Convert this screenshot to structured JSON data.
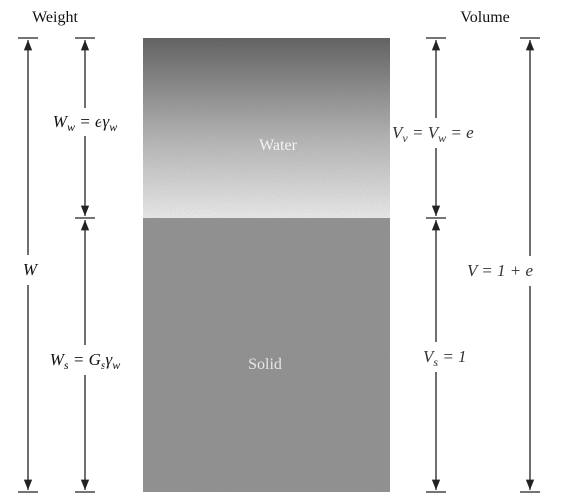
{
  "headers": {
    "weight": "Weight",
    "volume": "Volume"
  },
  "phases": {
    "water": "Water",
    "solid": "Solid"
  },
  "labels": {
    "water_weight": [
      {
        "text": "W"
      },
      {
        "text": "w",
        "sub": true
      },
      {
        "text": " = e"
      },
      {
        "text": "γ"
      },
      {
        "text": "w",
        "sub": true
      }
    ],
    "void_volume": [
      {
        "text": "V"
      },
      {
        "text": "v",
        "sub": true
      },
      {
        "text": " = V"
      },
      {
        "text": "w",
        "sub": true
      },
      {
        "text": " = e"
      }
    ],
    "total_weight": [
      {
        "text": "W"
      }
    ],
    "total_volume": [
      {
        "text": "V = 1 + e"
      }
    ],
    "solid_weight": [
      {
        "text": "W"
      },
      {
        "text": "s",
        "sub": true
      },
      {
        "text": " = G"
      },
      {
        "text": "s",
        "sub": true
      },
      {
        "text": "γ"
      },
      {
        "text": "w",
        "sub": true
      }
    ],
    "solid_volume": [
      {
        "text": "V"
      },
      {
        "text": "s",
        "sub": true
      },
      {
        "text": " = 1"
      }
    ]
  }
}
